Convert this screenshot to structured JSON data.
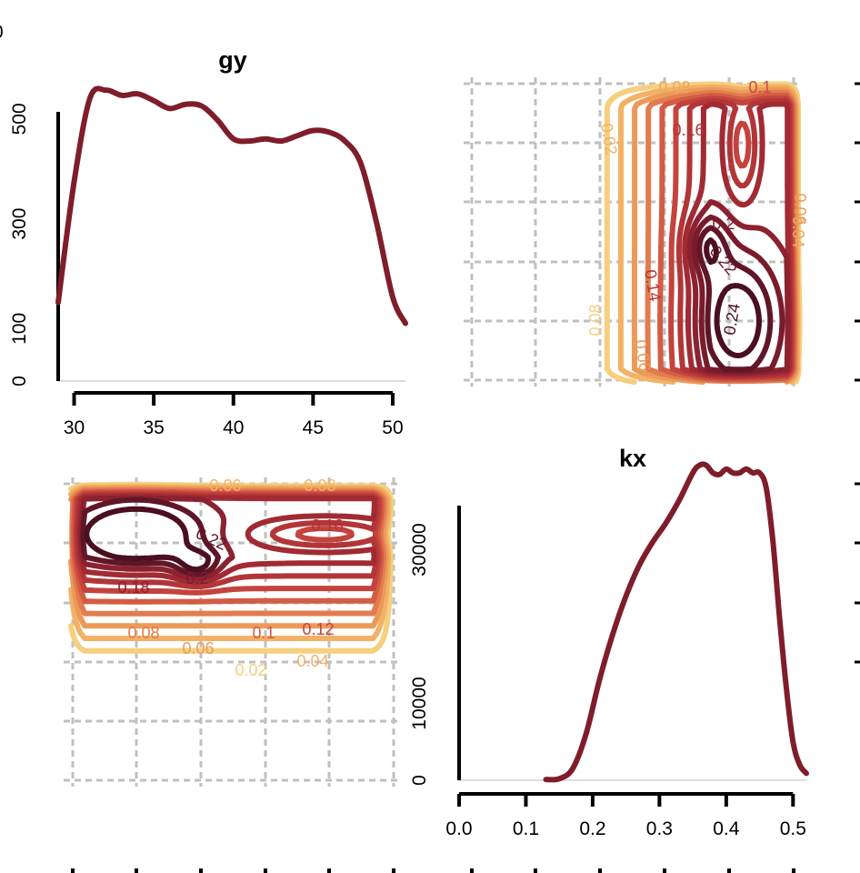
{
  "chart_data": [
    {
      "type": "line",
      "title": "gy",
      "xlabel": "",
      "ylabel": "",
      "xlim": [
        29,
        50.8
      ],
      "ylim": [
        0,
        590
      ],
      "x_ticks": [
        "30",
        "35",
        "40",
        "45",
        "50"
      ],
      "y_ticks": [
        "0",
        "100",
        "300",
        "500"
      ],
      "corner_tick_fragment": "0",
      "line_color": "#7f1d2a",
      "series": [
        {
          "x": [
            29,
            30,
            31,
            32,
            33,
            34,
            35,
            36,
            37,
            38,
            39,
            40,
            41,
            42,
            43,
            44,
            45,
            46,
            47,
            48,
            49,
            50,
            50.8
          ],
          "values": [
            150,
            380,
            540,
            555,
            545,
            548,
            535,
            520,
            528,
            525,
            498,
            462,
            458,
            462,
            458,
            468,
            478,
            475,
            458,
            415,
            300,
            160,
            110
          ]
        }
      ]
    },
    {
      "type": "contour",
      "panel": "upper-right",
      "xlim": [
        0,
        5
      ],
      "ylim": [
        0,
        5
      ],
      "grid": true,
      "visible_labels": [
        "0.08",
        "0.1",
        "0.16",
        "0.2",
        "0.22",
        "0.24",
        "0.14",
        "0.06",
        "0.04",
        "0.02",
        "0.08",
        "0.06"
      ],
      "levels": [
        0.02,
        0.04,
        0.06,
        0.08,
        0.1,
        0.12,
        0.14,
        0.16,
        0.18,
        0.2,
        0.22,
        0.24
      ],
      "colors": [
        "#f6cf7f",
        "#f2b266",
        "#ec9a59",
        "#e27c4e",
        "#d35c45",
        "#c4433d",
        "#b23537",
        "#a12a33",
        "#8c2230",
        "#7a1b2c",
        "#611627",
        "#4a0f20"
      ]
    },
    {
      "type": "contour",
      "panel": "lower-left",
      "xlim": [
        0,
        5
      ],
      "ylim": [
        0,
        5
      ],
      "grid": true,
      "visible_labels": [
        "0.06",
        "0.08",
        "0.16",
        "0.22",
        "0.2",
        "0.18",
        "0.08",
        "0.06",
        "0.1",
        "0.12",
        "0.04",
        "0.02"
      ],
      "levels": [
        0.02,
        0.04,
        0.06,
        0.08,
        0.1,
        0.12,
        0.14,
        0.16,
        0.18,
        0.2,
        0.22
      ],
      "colors": [
        "#f6cf7f",
        "#f2b266",
        "#ec9a59",
        "#e27c4e",
        "#d35c45",
        "#c4433d",
        "#b23537",
        "#a12a33",
        "#8c2230",
        "#611627",
        "#4a0f20"
      ]
    },
    {
      "type": "line",
      "title": "kx",
      "xlabel": "",
      "ylabel": "",
      "xlim": [
        0,
        0.52
      ],
      "ylim": [
        0,
        40000
      ],
      "x_ticks": [
        "0.0",
        "0.1",
        "0.2",
        "0.3",
        "0.4",
        "0.5"
      ],
      "y_ticks": [
        "0",
        "10000",
        "30000"
      ],
      "line_color": "#7f1d2a",
      "series": [
        {
          "x": [
            0.13,
            0.15,
            0.17,
            0.19,
            0.21,
            0.23,
            0.25,
            0.27,
            0.29,
            0.31,
            0.33,
            0.35,
            0.36,
            0.37,
            0.38,
            0.39,
            0.4,
            0.41,
            0.42,
            0.43,
            0.44,
            0.45,
            0.46,
            0.47,
            0.48,
            0.49,
            0.5,
            0.51,
            0.52
          ],
          "values": [
            100,
            200,
            1500,
            6000,
            13000,
            19000,
            24000,
            28000,
            31000,
            33500,
            36500,
            40000,
            41000,
            41000,
            40000,
            39800,
            40500,
            40000,
            40000,
            40500,
            40000,
            40000,
            38000,
            31000,
            21000,
            12000,
            5000,
            2000,
            900
          ]
        }
      ]
    }
  ]
}
